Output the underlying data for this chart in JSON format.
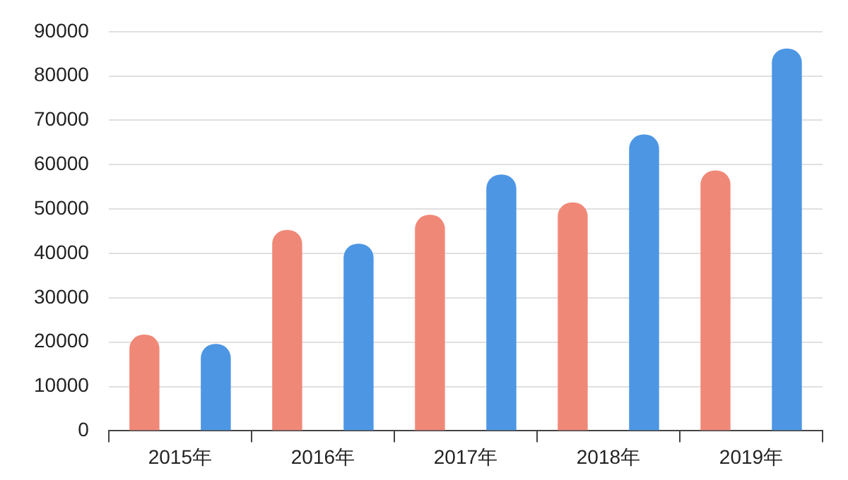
{
  "chart_data": {
    "type": "bar",
    "categories": [
      "2015年",
      "2016年",
      "2017年",
      "2018年",
      "2019年"
    ],
    "series": [
      {
        "color": "#f08878",
        "values": [
          21700,
          45300,
          48700,
          51500,
          58700
        ]
      },
      {
        "color": "#4d96e4",
        "values": [
          19600,
          42200,
          57800,
          66800,
          86200
        ]
      }
    ],
    "ylim": [
      0,
      90000
    ],
    "yticks": [
      0,
      10000,
      20000,
      30000,
      40000,
      50000,
      60000,
      70000,
      80000,
      90000
    ],
    "grid": "y",
    "legend": false
  }
}
